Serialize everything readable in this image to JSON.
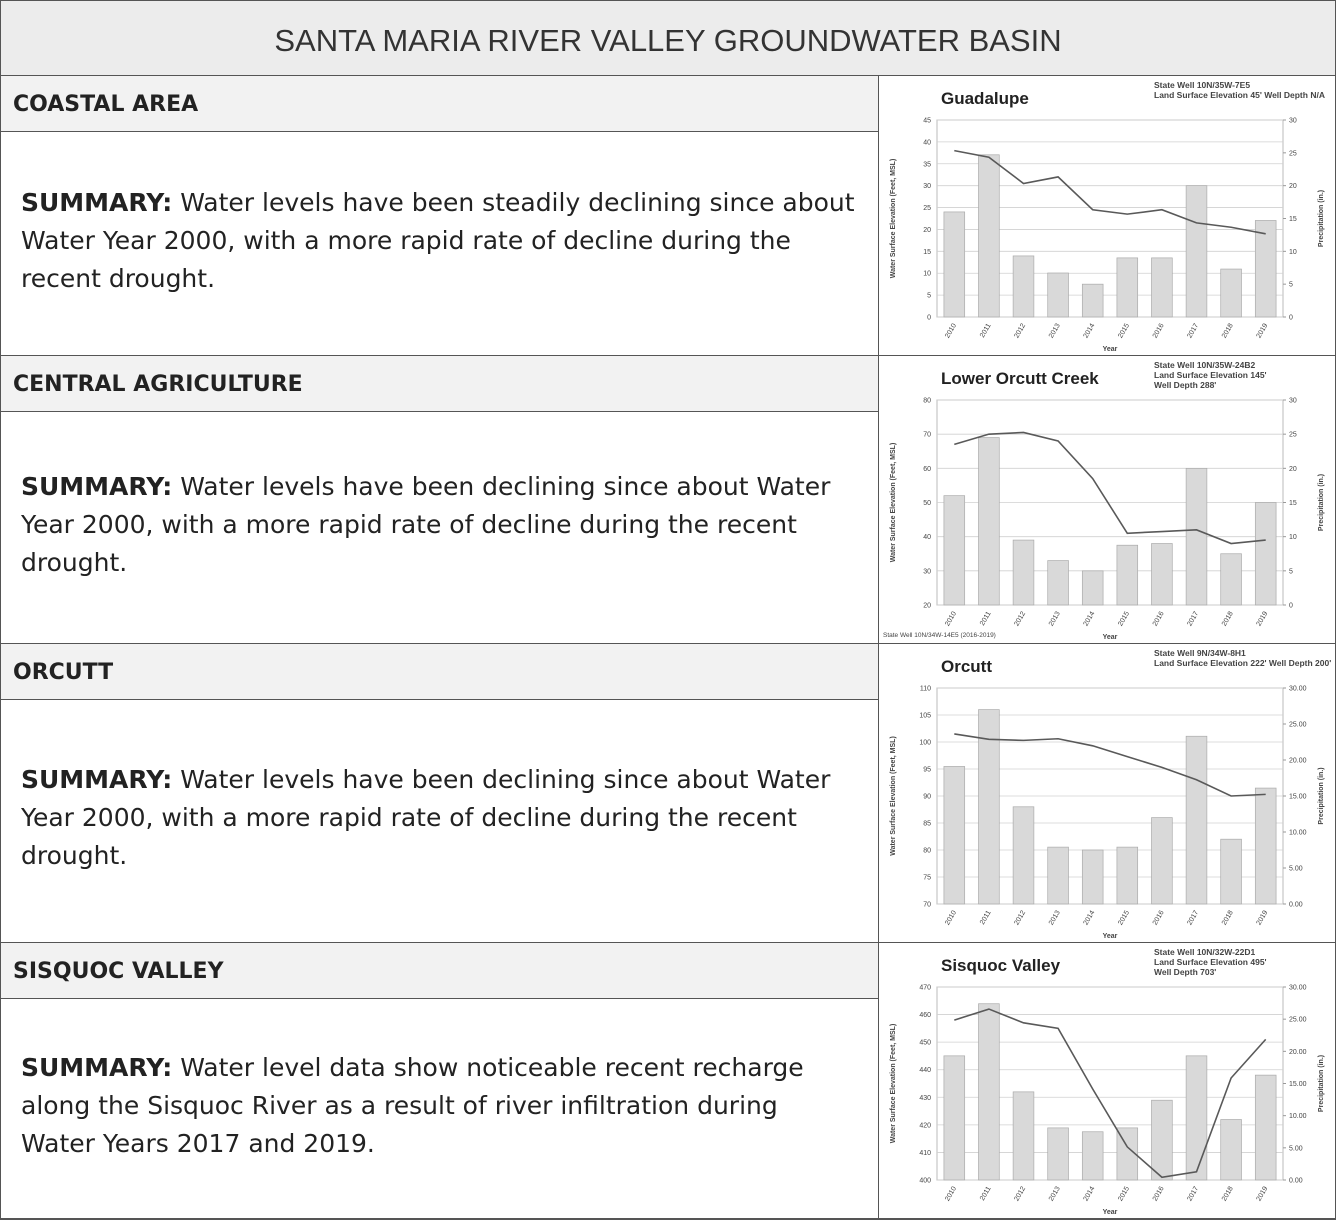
{
  "title": "SANTA MARIA RIVER VALLEY GROUNDWATER BASIN",
  "sections": [
    {
      "heading": "COASTAL AREA",
      "summary_label": "SUMMARY:",
      "summary": "Water levels have been steadily declining since about Water Year 2000, with a more rapid rate of decline during the recent drought.",
      "chart": {
        "type": "bar-line",
        "title": "Guadalupe",
        "well_info": [
          "State Well 10N/35W-7E5",
          "Land Surface Elevation 45'  Well Depth N/A"
        ],
        "y_label": "Water Surface Elevation (Feet, MSL)",
        "y2_label": "Precipitation (in.)",
        "x_label": "Year",
        "categories": [
          "2010",
          "2011",
          "2012",
          "2013",
          "2014",
          "2015",
          "2016",
          "2017",
          "2018",
          "2019"
        ],
        "ylim": [
          0,
          45
        ],
        "yticks": [
          0,
          5,
          10,
          15,
          20,
          25,
          30,
          35,
          40,
          45
        ],
        "y2lim": [
          0,
          30
        ],
        "y2ticks": [
          0,
          5,
          10,
          15,
          20,
          25,
          30
        ],
        "grid": true,
        "series": [
          {
            "name": "Precipitation",
            "color": "#d9d9d9",
            "axis": "y2",
            "values": [
              16,
              24.7,
              9.3,
              6.7,
              5,
              9,
              9,
              20,
              7.3,
              14.7
            ]
          },
          {
            "name": "Water Level",
            "color": "#595959",
            "values": [
              38,
              36.5,
              30.5,
              32,
              24.5,
              23.5,
              24.5,
              21.5,
              20.5,
              19
            ]
          }
        ]
      }
    },
    {
      "heading": "CENTRAL AGRICULTURE",
      "summary_label": "SUMMARY:",
      "summary": "Water levels have been declining since about Water Year 2000, with a more rapid rate of decline during the recent drought.",
      "chart": {
        "type": "bar-line",
        "title": "Lower Orcutt Creek",
        "well_info": [
          "State Well 10N/35W-24B2",
          "Land Surface Elevation 145'",
          "Well Depth 288'"
        ],
        "y_label": "Water Surface Elevation (Feet, MSL)",
        "y2_label": "Precipitation (in.)",
        "x_label": "Year",
        "footnote": "State Well 10N/34W-14E5 (2016-2019)",
        "categories": [
          "2010",
          "2011",
          "2012",
          "2013",
          "2014",
          "2015",
          "2016",
          "2017",
          "2018",
          "2019"
        ],
        "ylim": [
          20,
          80
        ],
        "yticks": [
          20,
          30,
          40,
          50,
          60,
          70,
          80
        ],
        "y2lim": [
          0,
          30
        ],
        "y2ticks": [
          0,
          5,
          10,
          15,
          20,
          25,
          30
        ],
        "grid": true,
        "series": [
          {
            "name": "Precipitation",
            "color": "#d9d9d9",
            "axis": "y2",
            "values": [
              16,
              24.5,
              9.5,
              6.5,
              5,
              8.75,
              9,
              20,
              7.5,
              15
            ]
          },
          {
            "name": "Water Level",
            "color": "#595959",
            "values": [
              67,
              70,
              70.5,
              68,
              57,
              41,
              41.5,
              42,
              38,
              39
            ]
          }
        ]
      }
    },
    {
      "heading": "ORCUTT",
      "summary_label": "SUMMARY:",
      "summary": "Water levels have been declining since about Water Year 2000, with a more rapid rate of decline during the recent drought.",
      "chart": {
        "type": "bar-line",
        "title": "Orcutt",
        "well_info": [
          "State Well 9N/34W-8H1",
          "Land Surface Elevation 222' Well Depth 200'"
        ],
        "y_label": "Water Surface Elevation (Feet, MSL)",
        "y2_label": "Precipitation (in.)",
        "x_label": "Year",
        "categories": [
          "2010",
          "2011",
          "2012",
          "2013",
          "2014",
          "2015",
          "2016",
          "2017",
          "2018",
          "2019"
        ],
        "ylim": [
          70,
          110
        ],
        "yticks": [
          70,
          75,
          80,
          85,
          90,
          95,
          100,
          105,
          110
        ],
        "y2lim": [
          0,
          30
        ],
        "y2ticks": [
          {
            "value": 0,
            "label": "0.00"
          },
          {
            "value": 5,
            "label": "5.00"
          },
          {
            "value": 10,
            "label": "10.00"
          },
          {
            "value": 15,
            "label": "15.00"
          },
          {
            "value": 20,
            "label": "20.00"
          },
          {
            "value": 25,
            "label": "25.00"
          },
          {
            "value": 30,
            "label": "30.00"
          }
        ],
        "grid": true,
        "series": [
          {
            "name": "Precipitation",
            "color": "#d9d9d9",
            "axis": "y2",
            "values": [
              19.1,
              27,
              13.5,
              7.9,
              7.5,
              7.9,
              12,
              23.3,
              9,
              16.1
            ]
          },
          {
            "name": "Water Level",
            "color": "#595959",
            "values": [
              101.5,
              100.5,
              100.3,
              100.6,
              99.3,
              97.3,
              95.3,
              93,
              90,
              90.3
            ]
          }
        ]
      }
    },
    {
      "heading": "SISQUOC VALLEY",
      "summary_label": "SUMMARY:",
      "summary": "Water level data show noticeable recent recharge along the Sisquoc River as a result of river infiltration during Water Years 2017 and 2019.",
      "chart": {
        "type": "bar-line",
        "title": "Sisquoc Valley",
        "well_info": [
          "State Well 10N/32W-22D1",
          "Land Surface Elevation 495'",
          "Well Depth 703'"
        ],
        "y_label": "Water Surface Elevation (Feet, MSL)",
        "y2_label": "Precipitation (in.)",
        "x_label": "Year",
        "categories": [
          "2010",
          "2011",
          "2012",
          "2013",
          "2014",
          "2015",
          "2016",
          "2017",
          "2018",
          "2019"
        ],
        "ylim": [
          400,
          470
        ],
        "yticks": [
          400,
          410,
          420,
          430,
          440,
          450,
          460,
          470
        ],
        "y2lim": [
          0,
          30
        ],
        "y2ticks": [
          {
            "value": 0,
            "label": "0.00"
          },
          {
            "value": 5,
            "label": "5.00"
          },
          {
            "value": 10,
            "label": "10.00"
          },
          {
            "value": 15,
            "label": "15.00"
          },
          {
            "value": 20,
            "label": "20.00"
          },
          {
            "value": 25,
            "label": "25.00"
          },
          {
            "value": 30,
            "label": "30.00"
          }
        ],
        "grid": true,
        "series": [
          {
            "name": "Precipitation",
            "color": "#d9d9d9",
            "axis": "y2",
            "values": [
              19.3,
              27.4,
              13.7,
              8.1,
              7.5,
              8.1,
              12.4,
              19.3,
              9.4,
              16.3
            ]
          },
          {
            "name": "Water Level",
            "color": "#595959",
            "values": [
              458,
              462,
              457,
              455,
              433,
              412,
              401,
              403,
              437,
              451
            ]
          }
        ]
      }
    }
  ]
}
